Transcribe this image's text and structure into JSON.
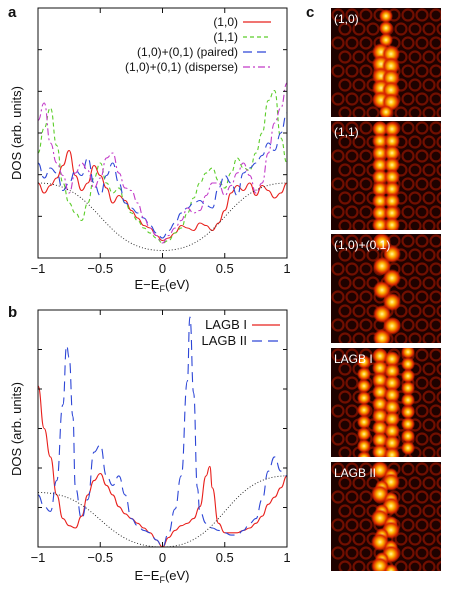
{
  "panels": {
    "a": {
      "letter": "a"
    },
    "b": {
      "letter": "b"
    },
    "c": {
      "letter": "c"
    }
  },
  "chart_data": [
    {
      "id": "a",
      "type": "line",
      "xlabel": "E−E",
      "xlabel_sub": "F",
      "xlabel_unit": "(eV)",
      "ylabel": "DOS (arb. units)",
      "xlim": [
        -1,
        1
      ],
      "ylim": [
        0,
        1
      ],
      "xticks": [
        "−1",
        "−0.5",
        "0",
        "0.5",
        "1"
      ],
      "legend_position": "top-right",
      "series": [
        {
          "name": "(1,0)",
          "color": "#e8201c",
          "dash": "",
          "x": [
            -1,
            -0.95,
            -0.9,
            -0.85,
            -0.8,
            -0.75,
            -0.7,
            -0.65,
            -0.6,
            -0.55,
            -0.5,
            -0.45,
            -0.4,
            -0.35,
            -0.3,
            -0.25,
            -0.2,
            -0.15,
            -0.1,
            -0.05,
            0,
            0.05,
            0.1,
            0.15,
            0.2,
            0.25,
            0.3,
            0.35,
            0.4,
            0.45,
            0.5,
            0.55,
            0.6,
            0.65,
            0.7,
            0.75,
            0.8,
            0.85,
            0.9,
            0.95,
            1
          ],
          "values": [
            0.3,
            0.26,
            0.29,
            0.32,
            0.37,
            0.43,
            0.33,
            0.27,
            0.3,
            0.37,
            0.33,
            0.28,
            0.22,
            0.25,
            0.23,
            0.19,
            0.16,
            0.13,
            0.12,
            0.09,
            0.07,
            0.08,
            0.1,
            0.13,
            0.12,
            0.11,
            0.14,
            0.13,
            0.11,
            0.14,
            0.19,
            0.26,
            0.29,
            0.27,
            0.3,
            0.25,
            0.29,
            0.27,
            0.24,
            0.26,
            0.3
          ]
        },
        {
          "name": "(1,1)",
          "color": "#5ccd2a",
          "dash": "4,3",
          "x": [
            -1,
            -0.95,
            -0.9,
            -0.85,
            -0.8,
            -0.75,
            -0.7,
            -0.65,
            -0.6,
            -0.55,
            -0.5,
            -0.45,
            -0.4,
            -0.35,
            -0.3,
            -0.25,
            -0.2,
            -0.15,
            -0.1,
            -0.05,
            0,
            0.05,
            0.1,
            0.15,
            0.2,
            0.25,
            0.3,
            0.35,
            0.4,
            0.45,
            0.5,
            0.55,
            0.6,
            0.65,
            0.7,
            0.75,
            0.8,
            0.85,
            0.9,
            0.95,
            1
          ],
          "values": [
            0.42,
            0.52,
            0.6,
            0.45,
            0.3,
            0.22,
            0.18,
            0.15,
            0.22,
            0.32,
            0.38,
            0.3,
            0.26,
            0.28,
            0.22,
            0.18,
            0.15,
            0.12,
            0.1,
            0.08,
            0.06,
            0.07,
            0.1,
            0.12,
            0.18,
            0.24,
            0.3,
            0.34,
            0.36,
            0.31,
            0.28,
            0.34,
            0.4,
            0.36,
            0.35,
            0.42,
            0.5,
            0.63,
            0.67,
            0.48,
            0.38
          ]
        },
        {
          "name": "(1,0)+(0,1) (paired)",
          "color": "#2d46d6",
          "dash": "9,5",
          "x": [
            -1,
            -0.95,
            -0.9,
            -0.85,
            -0.8,
            -0.75,
            -0.7,
            -0.65,
            -0.6,
            -0.55,
            -0.5,
            -0.45,
            -0.4,
            -0.35,
            -0.3,
            -0.25,
            -0.2,
            -0.15,
            -0.1,
            -0.05,
            0,
            0.05,
            0.1,
            0.15,
            0.2,
            0.25,
            0.3,
            0.35,
            0.4,
            0.45,
            0.5,
            0.55,
            0.6,
            0.65,
            0.7,
            0.75,
            0.8,
            0.85,
            0.9,
            0.95,
            1
          ],
          "values": [
            0.38,
            0.32,
            0.36,
            0.34,
            0.27,
            0.3,
            0.35,
            0.33,
            0.4,
            0.3,
            0.25,
            0.33,
            0.38,
            0.3,
            0.22,
            0.2,
            0.18,
            0.16,
            0.13,
            0.1,
            0.08,
            0.11,
            0.14,
            0.18,
            0.2,
            0.22,
            0.23,
            0.21,
            0.2,
            0.28,
            0.33,
            0.3,
            0.25,
            0.34,
            0.36,
            0.38,
            0.41,
            0.46,
            0.43,
            0.5,
            0.58
          ]
        },
        {
          "name": "(1,0)+(0,1) (disperse)",
          "color": "#c23ac8",
          "dash": "7,3,2,3",
          "x": [
            -1,
            -0.95,
            -0.9,
            -0.85,
            -0.8,
            -0.75,
            -0.7,
            -0.65,
            -0.6,
            -0.55,
            -0.5,
            -0.45,
            -0.4,
            -0.35,
            -0.3,
            -0.25,
            -0.2,
            -0.15,
            -0.1,
            -0.05,
            0,
            0.05,
            0.1,
            0.15,
            0.2,
            0.25,
            0.3,
            0.35,
            0.4,
            0.45,
            0.5,
            0.55,
            0.6,
            0.65,
            0.7,
            0.75,
            0.8,
            0.85,
            0.9,
            0.95,
            1
          ],
          "values": [
            0.55,
            0.62,
            0.46,
            0.38,
            0.33,
            0.26,
            0.34,
            0.38,
            0.35,
            0.28,
            0.32,
            0.4,
            0.42,
            0.34,
            0.28,
            0.27,
            0.22,
            0.16,
            0.12,
            0.09,
            0.06,
            0.09,
            0.12,
            0.15,
            0.2,
            0.18,
            0.19,
            0.25,
            0.3,
            0.3,
            0.25,
            0.29,
            0.34,
            0.38,
            0.33,
            0.26,
            0.3,
            0.42,
            0.54,
            0.6,
            0.7
          ]
        },
        {
          "name": "",
          "color": "#222222",
          "dash": "1,2",
          "x": [
            -1,
            0,
            1
          ],
          "values": [
            0.3,
            0.03,
            0.3
          ]
        }
      ]
    },
    {
      "id": "b",
      "type": "line",
      "xlabel": "E−E",
      "xlabel_sub": "F",
      "xlabel_unit": "(eV)",
      "ylabel": "DOS (arb. units)",
      "xlim": [
        -1,
        1
      ],
      "ylim": [
        0,
        1
      ],
      "xticks": [
        "−1",
        "−0.5",
        "0",
        "0.5",
        "1"
      ],
      "legend_position": "top-right",
      "series": [
        {
          "name": "LAGB I",
          "color": "#e8201c",
          "dash": "",
          "x": [
            -1,
            -0.95,
            -0.9,
            -0.85,
            -0.8,
            -0.75,
            -0.7,
            -0.65,
            -0.6,
            -0.55,
            -0.5,
            -0.45,
            -0.4,
            -0.35,
            -0.3,
            -0.25,
            -0.2,
            -0.15,
            -0.1,
            -0.05,
            0,
            0.05,
            0.1,
            0.15,
            0.2,
            0.25,
            0.3,
            0.35,
            0.38,
            0.4,
            0.45,
            0.5,
            0.55,
            0.6,
            0.65,
            0.7,
            0.75,
            0.8,
            0.85,
            0.9,
            0.95,
            1
          ],
          "values": [
            0.68,
            0.5,
            0.38,
            0.22,
            0.12,
            0.09,
            0.08,
            0.13,
            0.22,
            0.28,
            0.31,
            0.26,
            0.22,
            0.17,
            0.14,
            0.12,
            0.1,
            0.08,
            0.06,
            0.03,
            0.0,
            0.04,
            0.07,
            0.09,
            0.1,
            0.12,
            0.17,
            0.3,
            0.34,
            0.25,
            0.1,
            0.06,
            0.06,
            0.06,
            0.07,
            0.08,
            0.1,
            0.13,
            0.18,
            0.21,
            0.25,
            0.3
          ]
        },
        {
          "name": "LAGB II",
          "color": "#2d46d6",
          "dash": "10,6",
          "x": [
            -1,
            -0.95,
            -0.9,
            -0.85,
            -0.8,
            -0.77,
            -0.75,
            -0.72,
            -0.7,
            -0.65,
            -0.6,
            -0.55,
            -0.5,
            -0.45,
            -0.4,
            -0.35,
            -0.3,
            -0.25,
            -0.2,
            -0.15,
            -0.1,
            -0.05,
            0,
            0.05,
            0.1,
            0.15,
            0.2,
            0.22,
            0.25,
            0.28,
            0.3,
            0.35,
            0.4,
            0.45,
            0.5,
            0.55,
            0.6,
            0.65,
            0.7,
            0.75,
            0.8,
            0.85,
            0.9,
            0.95,
            1
          ],
          "values": [
            0.22,
            0.17,
            0.15,
            0.28,
            0.6,
            0.85,
            0.8,
            0.55,
            0.25,
            0.12,
            0.2,
            0.4,
            0.43,
            0.3,
            0.26,
            0.3,
            0.22,
            0.12,
            0.09,
            0.07,
            0.06,
            0.03,
            0.0,
            0.06,
            0.16,
            0.3,
            0.7,
            0.97,
            0.65,
            0.25,
            0.15,
            0.1,
            0.08,
            0.07,
            0.06,
            0.05,
            0.05,
            0.07,
            0.1,
            0.12,
            0.2,
            0.32,
            0.38,
            0.32,
            0.3
          ]
        },
        {
          "name": "",
          "color": "#222222",
          "dash": "1,2",
          "x": [
            -1,
            0,
            1
          ],
          "values": [
            0.23,
            0.0,
            0.3
          ]
        }
      ]
    }
  ],
  "stm_panels": [
    {
      "label": "(1,0)",
      "pattern": "spots-column"
    },
    {
      "label": "(1,1)",
      "pattern": "double-column"
    },
    {
      "label": "(1,0)+(0,1)",
      "pattern": "zigzag"
    },
    {
      "label": "LAGB I",
      "pattern": "triangles"
    },
    {
      "label": "LAGB II",
      "pattern": "arcs"
    }
  ]
}
